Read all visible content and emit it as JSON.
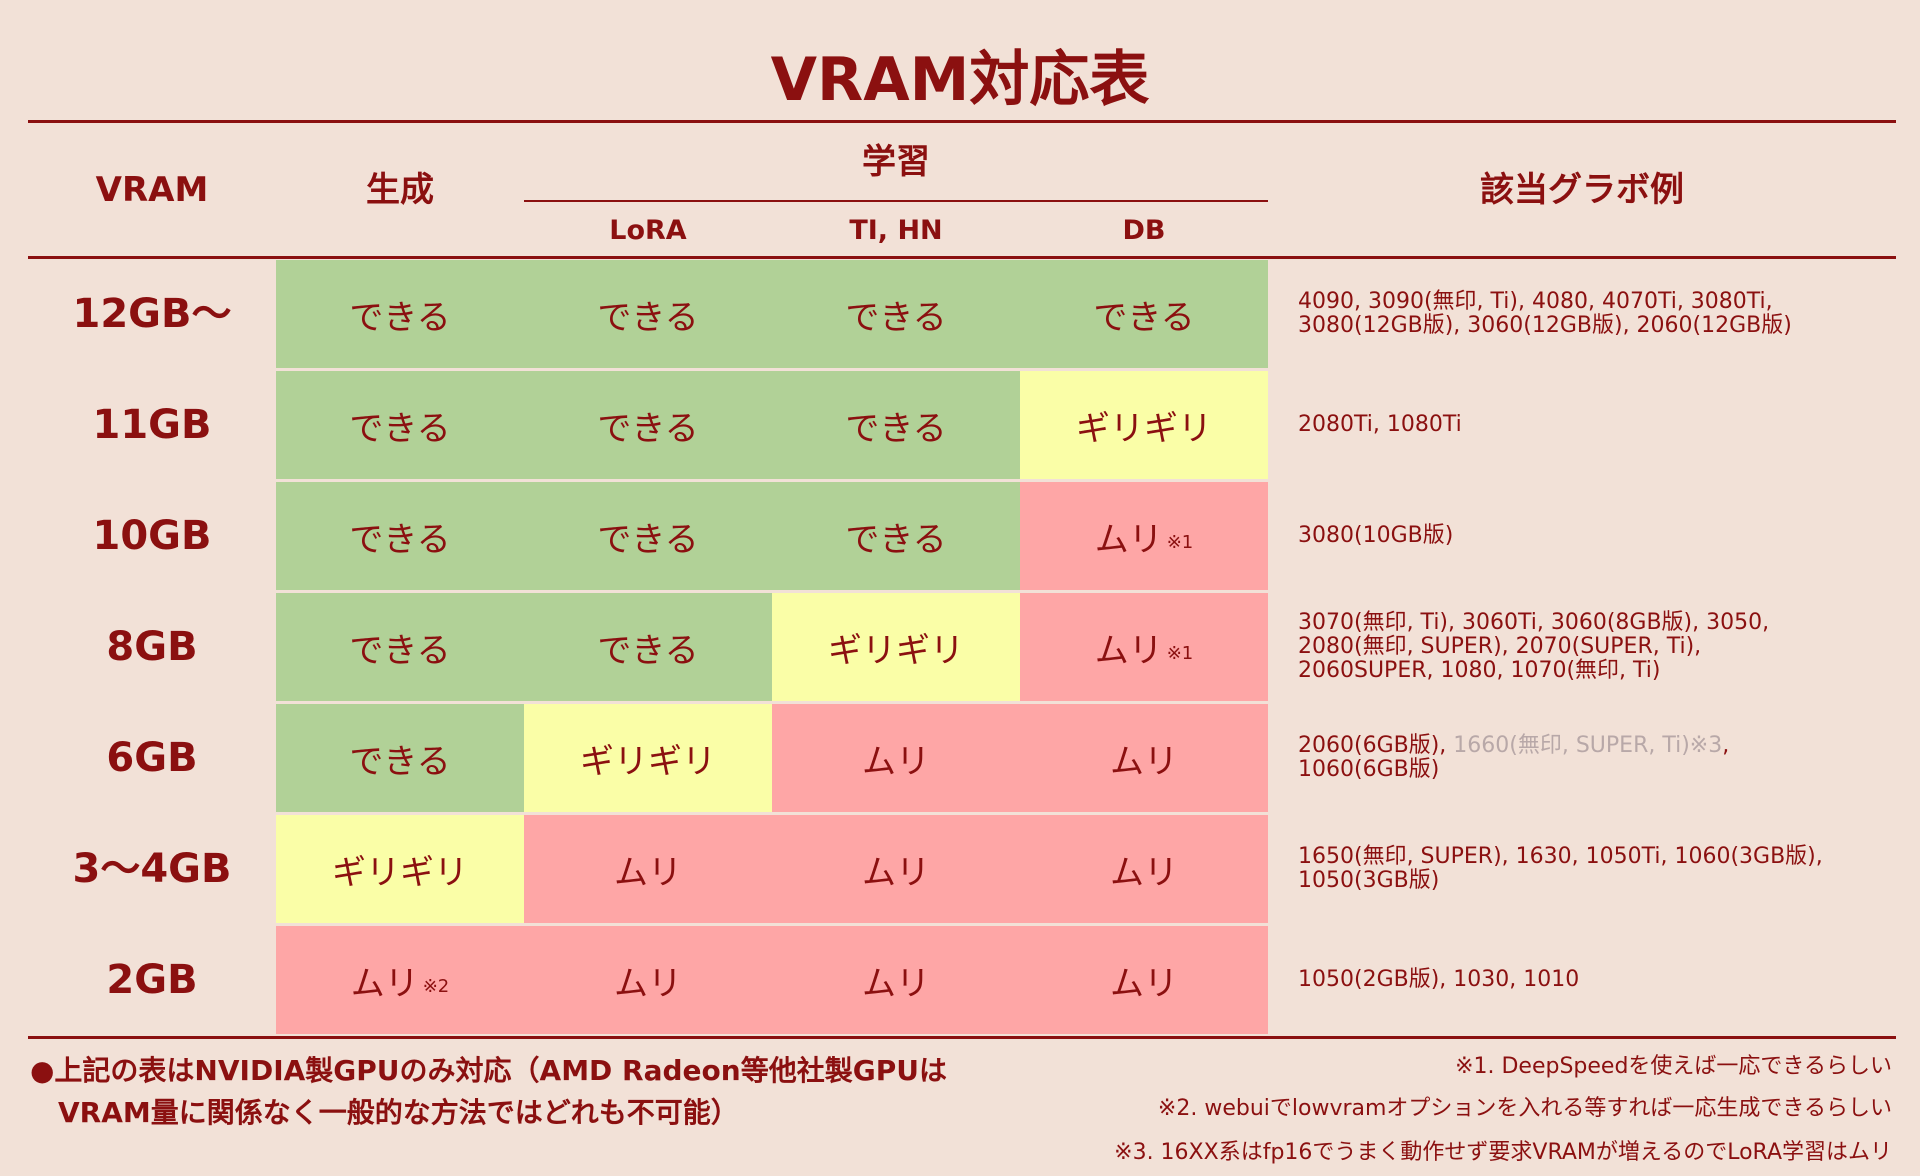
{
  "title": "VRAM対応表",
  "headers": {
    "vram": "VRAM",
    "generate": "生成",
    "train": "学習",
    "lora": "LoRA",
    "ti_hn": "TI, HN",
    "db": "DB",
    "gpus": "該当グラボ例"
  },
  "rows": [
    {
      "vram": "12GB〜",
      "cells": [
        {
          "text": "できる",
          "note": "",
          "status": "ok"
        },
        {
          "text": "できる",
          "note": "",
          "status": "ok"
        },
        {
          "text": "できる",
          "note": "",
          "status": "ok"
        },
        {
          "text": "できる",
          "note": "",
          "status": "ok"
        }
      ],
      "gpu_lines": [
        "4090, 3090(無印, Ti), 4080, 4070Ti, 3080Ti,",
        "3080(12GB版), 3060(12GB版), 2060(12GB版)"
      ]
    },
    {
      "vram": "11GB",
      "cells": [
        {
          "text": "できる",
          "note": "",
          "status": "ok"
        },
        {
          "text": "できる",
          "note": "",
          "status": "ok"
        },
        {
          "text": "できる",
          "note": "",
          "status": "ok"
        },
        {
          "text": "ギリギリ",
          "note": "",
          "status": "mid"
        }
      ],
      "gpu_lines": [
        "2080Ti, 1080Ti"
      ]
    },
    {
      "vram": "10GB",
      "cells": [
        {
          "text": "できる",
          "note": "",
          "status": "ok"
        },
        {
          "text": "できる",
          "note": "",
          "status": "ok"
        },
        {
          "text": "できる",
          "note": "",
          "status": "ok"
        },
        {
          "text": "ムリ",
          "note": "※1",
          "status": "ng"
        }
      ],
      "gpu_lines": [
        "3080(10GB版)"
      ]
    },
    {
      "vram": "8GB",
      "cells": [
        {
          "text": "できる",
          "note": "",
          "status": "ok"
        },
        {
          "text": "できる",
          "note": "",
          "status": "ok"
        },
        {
          "text": "ギリギリ",
          "note": "",
          "status": "mid"
        },
        {
          "text": "ムリ",
          "note": "※1",
          "status": "ng"
        }
      ],
      "gpu_lines": [
        "3070(無印, Ti), 3060Ti, 3060(8GB版), 3050,",
        "2080(無印, SUPER), 2070(SUPER, Ti),",
        "2060SUPER, 1080, 1070(無印, Ti)"
      ]
    },
    {
      "vram": "6GB",
      "cells": [
        {
          "text": "できる",
          "note": "",
          "status": "ok"
        },
        {
          "text": "ギリギリ",
          "note": "",
          "status": "mid"
        },
        {
          "text": "ムリ",
          "note": "",
          "status": "ng"
        },
        {
          "text": "ムリ",
          "note": "",
          "status": "ng"
        }
      ],
      "gpu_line1_a": "2060(6GB版), ",
      "gpu_line1_b": "1660(無印, SUPER, Ti)※3",
      "gpu_line1_c": ",",
      "gpu_lines": [
        "1060(6GB版)"
      ]
    },
    {
      "vram": "3〜4GB",
      "cells": [
        {
          "text": "ギリギリ",
          "note": "",
          "status": "mid"
        },
        {
          "text": "ムリ",
          "note": "",
          "status": "ng"
        },
        {
          "text": "ムリ",
          "note": "",
          "status": "ng"
        },
        {
          "text": "ムリ",
          "note": "",
          "status": "ng"
        }
      ],
      "gpu_lines": [
        "1650(無印, SUPER), 1630, 1050Ti, 1060(3GB版),",
        "1050(3GB版)"
      ]
    },
    {
      "vram": "2GB",
      "cells": [
        {
          "text": "ムリ",
          "note": "※2",
          "status": "ng"
        },
        {
          "text": "ムリ",
          "note": "",
          "status": "ng"
        },
        {
          "text": "ムリ",
          "note": "",
          "status": "ng"
        },
        {
          "text": "ムリ",
          "note": "",
          "status": "ng"
        }
      ],
      "gpu_lines": [
        "1050(2GB版), 1030, 1010"
      ]
    }
  ],
  "footer": {
    "line1": "●上記の表はNVIDIA製GPUのみ対応（AMD Radeon等他社製GPUは",
    "line2": "VRAM量に関係なく一般的な方法ではどれも不可能）",
    "notes": [
      "※1. DeepSpeedを使えば一応できるらしい",
      "※2. webuiでlowvramオプションを入れる等すれば一応生成できるらしい",
      "※3. 16XX系はfp16でうまく動作せず要求VRAMが増えるのでLoRA学習はムリ"
    ]
  },
  "colors": {
    "background": "#f2e1d7",
    "text": "#8b1010",
    "ok": "#b1d197",
    "mid": "#fafea7",
    "ng": "#fea6a6"
  }
}
